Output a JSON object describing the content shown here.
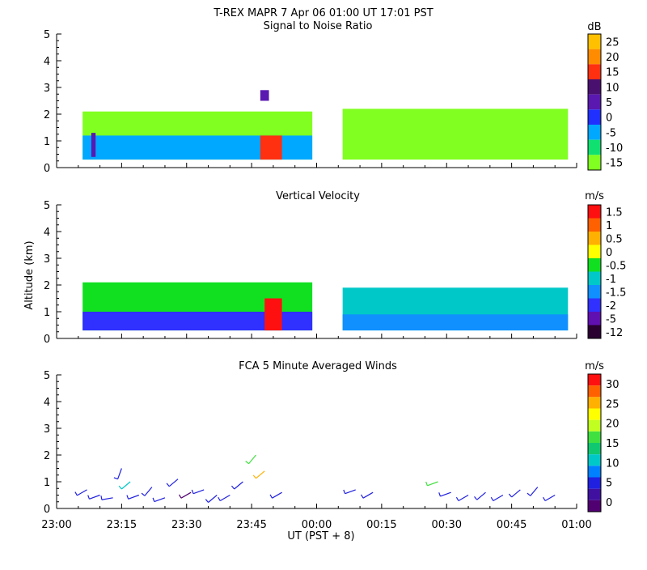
{
  "header": {
    "title": "T-REX   MAPR   7 Apr 06   01:00 UT   17:01   PST"
  },
  "shared_axes": {
    "xlabel": "UT  (PST + 8)",
    "x_ticks": [
      "23:00",
      "23:15",
      "23:30",
      "23:45",
      "00:00",
      "00:15",
      "00:30",
      "00:45",
      "01:00"
    ],
    "ylabel": "Altitude (km)",
    "y_ticks": [
      "0",
      "1",
      "2",
      "3",
      "4",
      "5"
    ]
  },
  "chart_data": [
    {
      "type": "heatmap",
      "title": "Signal to Noise Ratio",
      "unit": "dB",
      "x_range": [
        "23:00",
        "01:00"
      ],
      "ylim": [
        0,
        5
      ],
      "data_gap": [
        "23:59",
        "00:06"
      ],
      "colorbar": {
        "labels": [
          "25",
          "20",
          "15",
          "10",
          "5",
          "0",
          "-5",
          "-10",
          "-15"
        ],
        "colors": [
          "#ffc000",
          "#ff8c00",
          "#ff3010",
          "#4a1070",
          "#5a18b0",
          "#2030ff",
          "#00a8ff",
          "#10e070",
          "#80ff20"
        ]
      },
      "regions": [
        {
          "x": [
            "23:06",
            "23:59"
          ],
          "y": [
            0.3,
            2.1
          ],
          "value": -12
        },
        {
          "x": [
            "00:06",
            "00:58"
          ],
          "y": [
            0.3,
            2.2
          ],
          "value": -12
        },
        {
          "x": [
            "23:06",
            "23:59"
          ],
          "y": [
            0.3,
            1.2
          ],
          "value": -5
        },
        {
          "x": [
            "23:47",
            "23:52"
          ],
          "y": [
            0.3,
            1.2
          ],
          "value": 15
        },
        {
          "x": [
            "23:08",
            "23:09"
          ],
          "y": [
            0.4,
            1.3
          ],
          "value": 5
        },
        {
          "x": [
            "23:47",
            "23:49"
          ],
          "y": [
            2.5,
            2.9
          ],
          "value": 5
        }
      ]
    },
    {
      "type": "heatmap",
      "title": "Vertical Velocity",
      "unit": "m/s",
      "x_range": [
        "23:00",
        "01:00"
      ],
      "ylim": [
        0,
        5
      ],
      "data_gap": [
        "23:59",
        "00:06"
      ],
      "colorbar": {
        "labels": [
          "1.5",
          "1",
          "0.5",
          "0",
          "-0.5",
          "-1",
          "-1.5",
          "-2",
          "-5",
          "-12"
        ],
        "colors": [
          "#ff1010",
          "#ff6000",
          "#ffb000",
          "#ffff00",
          "#10e020",
          "#00c8c8",
          "#1090ff",
          "#3030ff",
          "#6010b0",
          "#2a0030"
        ]
      },
      "regions": [
        {
          "x": [
            "23:06",
            "23:59"
          ],
          "y": [
            0.3,
            2.1
          ],
          "value": -0.5
        },
        {
          "x": [
            "23:06",
            "23:59"
          ],
          "y": [
            0.3,
            1.0
          ],
          "value": -2
        },
        {
          "x": [
            "23:48",
            "23:52"
          ],
          "y": [
            0.3,
            1.5
          ],
          "value": 1.5
        },
        {
          "x": [
            "00:06",
            "00:58"
          ],
          "y": [
            0.3,
            1.9
          ],
          "value": -1
        },
        {
          "x": [
            "00:06",
            "00:58"
          ],
          "y": [
            0.3,
            0.9
          ],
          "value": -1.5
        }
      ]
    },
    {
      "type": "scatter",
      "title": "FCA 5 Minute Averaged Winds",
      "unit": "m/s",
      "x_range": [
        "23:00",
        "01:00"
      ],
      "ylim": [
        0,
        5
      ],
      "colorbar": {
        "labels": [
          "30",
          "25",
          "20",
          "15",
          "10",
          "5",
          "0"
        ],
        "colors": [
          "#ff1010",
          "#ff6000",
          "#ffb000",
          "#ffff00",
          "#c0ff20",
          "#40e040",
          "#10c870",
          "#00c8c8",
          "#0080ff",
          "#2020e0",
          "#4010a0",
          "#500070"
        ]
      },
      "barbs": [
        {
          "time": "23:07",
          "alt": 0.7,
          "speed": 5,
          "dir": 240
        },
        {
          "time": "23:10",
          "alt": 0.5,
          "speed": 6,
          "dir": 250
        },
        {
          "time": "23:13",
          "alt": 0.4,
          "speed": 8,
          "dir": 260
        },
        {
          "time": "23:15",
          "alt": 1.5,
          "speed": 6,
          "dir": 200
        },
        {
          "time": "23:17",
          "alt": 1.0,
          "speed": 12,
          "dir": 230
        },
        {
          "time": "23:19",
          "alt": 0.5,
          "speed": 5,
          "dir": 250
        },
        {
          "time": "23:22",
          "alt": 0.8,
          "speed": 6,
          "dir": 220
        },
        {
          "time": "23:25",
          "alt": 0.4,
          "speed": 5,
          "dir": 250
        },
        {
          "time": "23:28",
          "alt": 1.1,
          "speed": 5,
          "dir": 230
        },
        {
          "time": "23:31",
          "alt": 0.6,
          "speed": 4,
          "dir": 240
        },
        {
          "time": "23:34",
          "alt": 0.7,
          "speed": 6,
          "dir": 250
        },
        {
          "time": "23:37",
          "alt": 0.5,
          "speed": 5,
          "dir": 230
        },
        {
          "time": "23:40",
          "alt": 0.5,
          "speed": 7,
          "dir": 240
        },
        {
          "time": "23:43",
          "alt": 1.0,
          "speed": 6,
          "dir": 230
        },
        {
          "time": "23:46",
          "alt": 2.0,
          "speed": 15,
          "dir": 220
        },
        {
          "time": "23:48",
          "alt": 1.4,
          "speed": 22,
          "dir": 230
        },
        {
          "time": "23:52",
          "alt": 0.6,
          "speed": 5,
          "dir": 240
        },
        {
          "time": "00:09",
          "alt": 0.7,
          "speed": 5,
          "dir": 250
        },
        {
          "time": "00:13",
          "alt": 0.6,
          "speed": 6,
          "dir": 240
        },
        {
          "time": "00:28",
          "alt": 1.0,
          "speed": 18,
          "dir": 250
        },
        {
          "time": "00:31",
          "alt": 0.6,
          "speed": 5,
          "dir": 250
        },
        {
          "time": "00:35",
          "alt": 0.5,
          "speed": 6,
          "dir": 240
        },
        {
          "time": "00:39",
          "alt": 0.6,
          "speed": 5,
          "dir": 230
        },
        {
          "time": "00:43",
          "alt": 0.5,
          "speed": 6,
          "dir": 240
        },
        {
          "time": "00:47",
          "alt": 0.7,
          "speed": 5,
          "dir": 230
        },
        {
          "time": "00:51",
          "alt": 0.8,
          "speed": 7,
          "dir": 220
        },
        {
          "time": "00:55",
          "alt": 0.5,
          "speed": 9,
          "dir": 240
        }
      ]
    }
  ]
}
